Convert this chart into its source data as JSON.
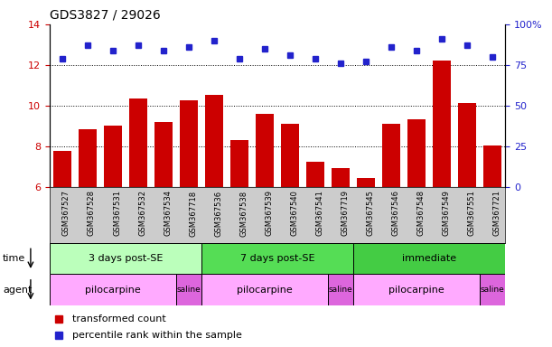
{
  "title": "GDS3827 / 29026",
  "samples": [
    "GSM367527",
    "GSM367528",
    "GSM367531",
    "GSM367532",
    "GSM367534",
    "GSM367718",
    "GSM367536",
    "GSM367538",
    "GSM367539",
    "GSM367540",
    "GSM367541",
    "GSM367719",
    "GSM367545",
    "GSM367546",
    "GSM367548",
    "GSM367549",
    "GSM367551",
    "GSM367721"
  ],
  "red_values": [
    7.8,
    8.85,
    9.05,
    10.35,
    9.2,
    10.25,
    10.55,
    8.3,
    9.6,
    9.1,
    7.25,
    6.95,
    6.45,
    9.1,
    9.35,
    12.2,
    10.15,
    8.05
  ],
  "blue_values_pct": [
    79,
    87,
    84,
    87,
    84,
    86,
    90,
    79,
    85,
    81,
    79,
    76,
    77,
    86,
    84,
    91,
    87,
    80
  ],
  "ylim_left": [
    6,
    14
  ],
  "ylim_right": [
    0,
    100
  ],
  "yticks_left": [
    6,
    8,
    10,
    12,
    14
  ],
  "yticks_right": [
    0,
    25,
    50,
    75,
    100
  ],
  "bar_color": "#cc0000",
  "dot_color": "#2222cc",
  "time_groups": [
    {
      "label": "3 days post-SE",
      "start": 0,
      "end": 6,
      "color": "#bbffbb"
    },
    {
      "label": "7 days post-SE",
      "start": 6,
      "end": 12,
      "color": "#55dd55"
    },
    {
      "label": "immediate",
      "start": 12,
      "end": 18,
      "color": "#44cc44"
    }
  ],
  "agent_groups": [
    {
      "label": "pilocarpine",
      "start": 0,
      "end": 5,
      "color": "#ffaaff"
    },
    {
      "label": "saline",
      "start": 5,
      "end": 6,
      "color": "#dd66dd"
    },
    {
      "label": "pilocarpine",
      "start": 6,
      "end": 11,
      "color": "#ffaaff"
    },
    {
      "label": "saline",
      "start": 11,
      "end": 12,
      "color": "#dd66dd"
    },
    {
      "label": "pilocarpine",
      "start": 12,
      "end": 17,
      "color": "#ffaaff"
    },
    {
      "label": "saline",
      "start": 17,
      "end": 18,
      "color": "#dd66dd"
    }
  ],
  "legend_red": "transformed count",
  "legend_blue": "percentile rank within the sample",
  "time_label": "time",
  "agent_label": "agent",
  "right_axis_color": "#2222cc",
  "left_axis_color": "#cc0000",
  "xtick_bg_color": "#cccccc",
  "bar_bottom": 6
}
